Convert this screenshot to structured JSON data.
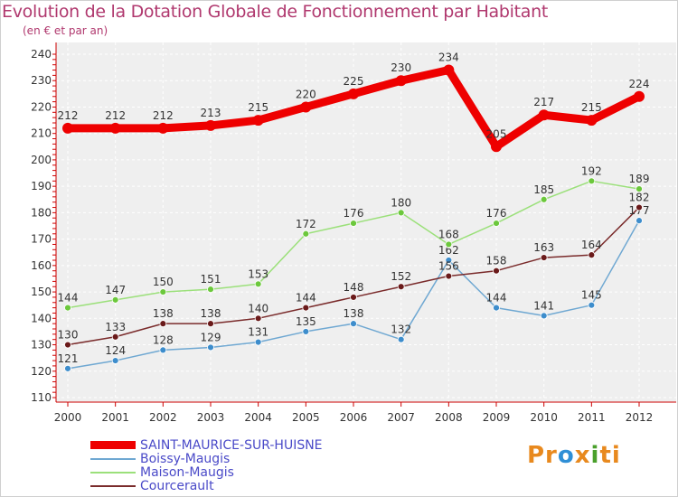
{
  "title": "Evolution de la Dotation Globale de Fonctionnement par Habitant",
  "subtitle": "(en € et par an)",
  "brand": {
    "parts": [
      "Pr",
      "o",
      "x",
      "i",
      "ti"
    ],
    "colors": [
      "#e8891e",
      "#2f8fd6",
      "#e8891e",
      "#4aa02c",
      "#e8891e"
    ]
  },
  "chart_data": {
    "type": "line",
    "title": "Evolution de la Dotation Globale de Fonctionnement par Habitant",
    "subtitle": "(en € et par an)",
    "xlabel": "",
    "ylabel": "",
    "x": [
      "2000",
      "2001",
      "2002",
      "2003",
      "2004",
      "2005",
      "2006",
      "2007",
      "2008",
      "2009",
      "2010",
      "2011",
      "2012"
    ],
    "ylim": [
      110,
      240
    ],
    "yticks": [
      110,
      120,
      130,
      140,
      150,
      160,
      170,
      180,
      190,
      200,
      210,
      220,
      230,
      240
    ],
    "grid": true,
    "series": [
      {
        "name": "SAINT-MAURICE-SUR-HUISNE",
        "color": "#ee0000",
        "weight": "thick",
        "values": [
          212,
          212,
          212,
          213,
          215,
          220,
          225,
          230,
          234,
          205,
          217,
          215,
          224
        ]
      },
      {
        "name": "Boissy-Maugis",
        "color": "#6fa8d2",
        "marker": "#3d8dcc",
        "weight": "thin",
        "values": [
          121,
          124,
          128,
          129,
          131,
          135,
          138,
          132,
          162,
          144,
          141,
          145,
          177
        ]
      },
      {
        "name": "Maison-Maugis",
        "color": "#9be07a",
        "marker": "#6cc83c",
        "weight": "thin",
        "values": [
          144,
          147,
          150,
          151,
          153,
          172,
          176,
          180,
          168,
          176,
          185,
          192,
          189
        ]
      },
      {
        "name": "Courcerault",
        "color": "#7a2b2b",
        "marker": "#6a1a1a",
        "weight": "thin",
        "values": [
          130,
          133,
          138,
          138,
          140,
          144,
          148,
          152,
          156,
          158,
          163,
          164,
          182
        ]
      }
    ]
  }
}
